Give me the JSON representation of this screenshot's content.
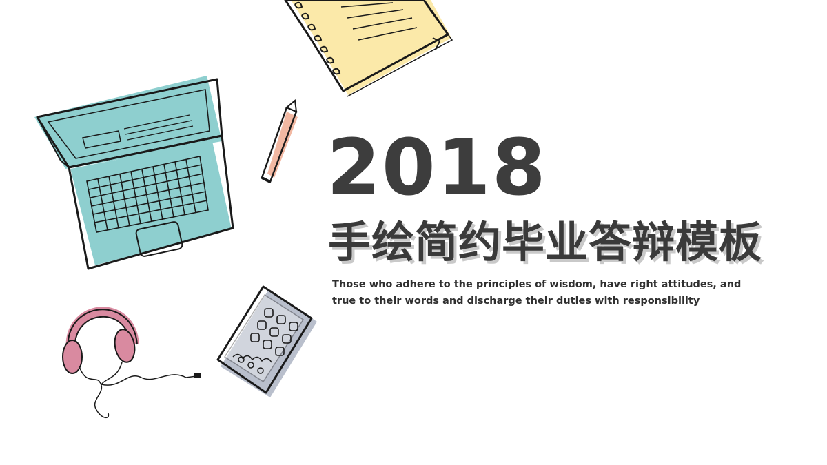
{
  "slide": {
    "year": "2018",
    "title": "手绘简约毕业答辩模板",
    "subtitle_line1": "Those who adhere to the principles of wisdom, have right attitudes, and",
    "subtitle_line2": "true to their words and discharge their duties with responsibility"
  },
  "colors": {
    "background": "#ffffff",
    "heading": "#3d3d3d",
    "heading_shadow": "#c9c9c9",
    "laptop": "#8ecfcf",
    "notebook": "#fbe9a9",
    "pencil": "#f2b8a2",
    "headphones": "#d98aa0",
    "tablet": "#b9bfcc",
    "ink": "#1a1a1a"
  },
  "illustrations": [
    "laptop-icon",
    "notebook-icon",
    "pencil-icon",
    "headphones-icon",
    "tablet-icon"
  ]
}
